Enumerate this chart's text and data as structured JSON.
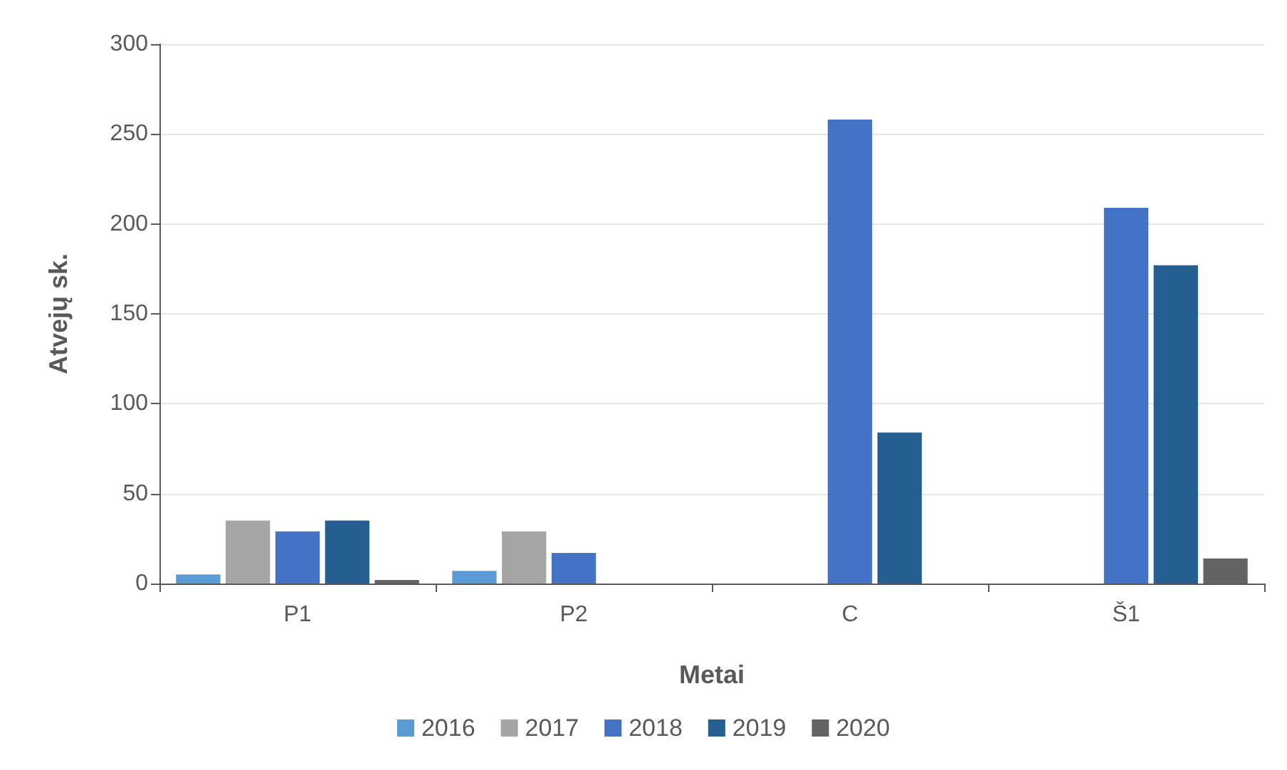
{
  "chart_data": {
    "type": "bar",
    "xlabel": "Metai",
    "ylabel": "Atvejų sk.",
    "categories": [
      "P1",
      "P2",
      "C",
      "Š1"
    ],
    "series": [
      {
        "name": "2016",
        "color": "#5b9bd5",
        "values": [
          5,
          7,
          null,
          null
        ]
      },
      {
        "name": "2017",
        "color": "#a5a5a5",
        "values": [
          35,
          29,
          null,
          null
        ]
      },
      {
        "name": "2018",
        "color": "#4472c4",
        "values": [
          29,
          17,
          258,
          209
        ]
      },
      {
        "name": "2019",
        "color": "#255e91",
        "values": [
          35,
          null,
          84,
          177
        ]
      },
      {
        "name": "2020",
        "color": "#636363",
        "values": [
          2,
          null,
          null,
          14
        ]
      }
    ],
    "ylim": [
      0,
      300
    ],
    "yticks": [
      0,
      50,
      100,
      150,
      200,
      250,
      300
    ],
    "grid": "y",
    "legend": "bottom"
  }
}
